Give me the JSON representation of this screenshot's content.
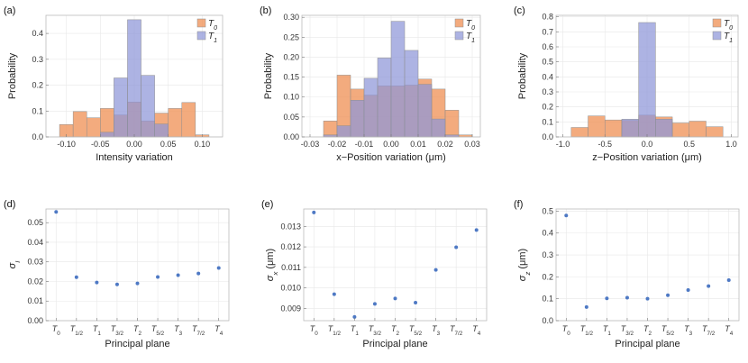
{
  "colors": {
    "T0": "#ee8a4c",
    "T1": "#8d96d8",
    "point": "#4e79c4",
    "frame": "#bbbbbb",
    "grid": "#e8e8e8"
  },
  "chart_data": [
    {
      "id": "a",
      "panel_label": "(a)",
      "type": "histogram",
      "xlabel": "Intensity variation",
      "ylabel": "Probability",
      "xlim": [
        -0.13,
        0.13
      ],
      "ylim": [
        0,
        0.47
      ],
      "xticks": [
        -0.1,
        -0.05,
        0.0,
        0.05,
        0.1
      ],
      "xtick_labels": [
        "-0.10",
        "-0.05",
        "0.00",
        "0.05",
        "0.10"
      ],
      "yticks": [
        0.0,
        0.1,
        0.2,
        0.3,
        0.4
      ],
      "ytick_labels": [
        "0.0",
        "0.1",
        "0.2",
        "0.3",
        "0.4"
      ],
      "legend": {
        "position": "top-right",
        "entries": [
          {
            "key": "T0",
            "label": "T",
            "sub": "0"
          },
          {
            "key": "T1",
            "label": "T",
            "sub": "1"
          }
        ]
      },
      "series": [
        {
          "key": "T0",
          "bins": [
            [
              -0.11,
              -0.09,
              0.048
            ],
            [
              -0.09,
              -0.07,
              0.098
            ],
            [
              -0.07,
              -0.05,
              0.074
            ],
            [
              -0.05,
              -0.03,
              0.11
            ],
            [
              -0.03,
              -0.01,
              0.085
            ],
            [
              -0.01,
              0.01,
              0.135
            ],
            [
              0.01,
              0.03,
              0.062
            ],
            [
              0.03,
              0.05,
              0.092
            ],
            [
              0.05,
              0.07,
              0.11
            ],
            [
              0.07,
              0.09,
              0.133
            ],
            [
              0.09,
              0.11,
              0.008
            ]
          ]
        },
        {
          "key": "T1",
          "bins": [
            [
              -0.05,
              -0.03,
              0.018
            ],
            [
              -0.03,
              -0.01,
              0.228
            ],
            [
              -0.01,
              0.01,
              0.453
            ],
            [
              0.01,
              0.03,
              0.238
            ],
            [
              0.03,
              0.05,
              0.05
            ]
          ]
        }
      ]
    },
    {
      "id": "b",
      "panel_label": "(b)",
      "type": "histogram",
      "xlabel": "x−Position variation (μm)",
      "ylabel": "Probability",
      "xlim": [
        -0.033,
        0.033
      ],
      "ylim": [
        0,
        0.305
      ],
      "xticks": [
        -0.03,
        -0.02,
        -0.01,
        0.0,
        0.01,
        0.02,
        0.03
      ],
      "xtick_labels": [
        "-0.03",
        "-0.02",
        "-0.01",
        "0.00",
        "0.01",
        "0.02",
        "0.03"
      ],
      "yticks": [
        0.0,
        0.05,
        0.1,
        0.15,
        0.2,
        0.25,
        0.3
      ],
      "ytick_labels": [
        "0.00",
        "0.05",
        "0.10",
        "0.15",
        "0.20",
        "0.25",
        "0.30"
      ],
      "legend": {
        "position": "top-right",
        "entries": [
          {
            "key": "T0",
            "label": "T",
            "sub": "0"
          },
          {
            "key": "T1",
            "label": "T",
            "sub": "1"
          }
        ]
      },
      "series": [
        {
          "key": "T0",
          "bins": [
            [
              -0.025,
              -0.02,
              0.04
            ],
            [
              -0.02,
              -0.015,
              0.155
            ],
            [
              -0.015,
              -0.01,
              0.12
            ],
            [
              -0.01,
              -0.005,
              0.105
            ],
            [
              -0.005,
              0.0,
              0.128
            ],
            [
              0.0,
              0.005,
              0.128
            ],
            [
              0.005,
              0.01,
              0.13
            ],
            [
              0.01,
              0.015,
              0.145
            ],
            [
              0.015,
              0.02,
              0.12
            ],
            [
              0.02,
              0.025,
              0.067
            ],
            [
              0.025,
              0.03,
              0.005
            ]
          ]
        },
        {
          "key": "T1",
          "bins": [
            [
              -0.025,
              -0.02,
              0.005
            ],
            [
              -0.02,
              -0.015,
              0.028
            ],
            [
              -0.015,
              -0.01,
              0.092
            ],
            [
              -0.01,
              -0.005,
              0.147
            ],
            [
              -0.005,
              0.0,
              0.198
            ],
            [
              0.0,
              0.005,
              0.29
            ],
            [
              0.005,
              0.01,
              0.217
            ],
            [
              0.01,
              0.015,
              0.132
            ],
            [
              0.015,
              0.02,
              0.045
            ],
            [
              0.02,
              0.025,
              0.005
            ]
          ]
        }
      ]
    },
    {
      "id": "c",
      "panel_label": "(c)",
      "type": "histogram",
      "xlabel": "z−Position variation (μm)",
      "ylabel": "Probability",
      "xlim": [
        -1.08,
        1.08
      ],
      "ylim": [
        0,
        0.81
      ],
      "xticks": [
        -1.0,
        -0.5,
        0.0,
        0.5,
        1.0
      ],
      "xtick_labels": [
        "-1.0",
        "-0.5",
        "0.0",
        "0.5",
        "1.0"
      ],
      "yticks": [
        0.0,
        0.1,
        0.2,
        0.3,
        0.4,
        0.5,
        0.6,
        0.7,
        0.8
      ],
      "ytick_labels": [
        "0.0",
        "0.1",
        "0.2",
        "0.3",
        "0.4",
        "0.5",
        "0.6",
        "0.7",
        "0.8"
      ],
      "legend": {
        "position": "top-right",
        "entries": [
          {
            "key": "T0",
            "label": "T",
            "sub": "0"
          },
          {
            "key": "T1",
            "label": "T",
            "sub": "1"
          }
        ]
      },
      "series": [
        {
          "key": "T0",
          "bins": [
            [
              -0.9,
              -0.7,
              0.063
            ],
            [
              -0.7,
              -0.5,
              0.14
            ],
            [
              -0.5,
              -0.3,
              0.113
            ],
            [
              -0.3,
              -0.1,
              0.11
            ],
            [
              -0.1,
              0.1,
              0.145
            ],
            [
              0.1,
              0.3,
              0.133
            ],
            [
              0.3,
              0.5,
              0.093
            ],
            [
              0.5,
              0.7,
              0.105
            ],
            [
              0.7,
              0.9,
              0.068
            ]
          ]
        },
        {
          "key": "T1",
          "bins": [
            [
              -0.3,
              -0.1,
              0.118
            ],
            [
              -0.1,
              0.1,
              0.762
            ],
            [
              0.1,
              0.3,
              0.118
            ]
          ]
        }
      ]
    },
    {
      "id": "d",
      "panel_label": "(d)",
      "type": "scatter",
      "xlabel": "Principal plane",
      "ylabel": "σ",
      "ylabel_sub": "I",
      "ylim": [
        0,
        0.057
      ],
      "yticks": [
        0.0,
        0.01,
        0.02,
        0.03,
        0.04,
        0.05
      ],
      "ytick_labels": [
        "0.00",
        "0.01",
        "0.02",
        "0.03",
        "0.04",
        "0.05"
      ],
      "categories": [
        "T0",
        "T1/2",
        "T1",
        "T3/2",
        "T2",
        "T5/2",
        "T3",
        "T7/2",
        "T4"
      ],
      "category_labels": [
        {
          "main": "T",
          "sub": "0"
        },
        {
          "main": "T",
          "sub": "1/2"
        },
        {
          "main": "T",
          "sub": "1"
        },
        {
          "main": "T",
          "sub": "3/2"
        },
        {
          "main": "T",
          "sub": "2"
        },
        {
          "main": "T",
          "sub": "5/2"
        },
        {
          "main": "T",
          "sub": "3"
        },
        {
          "main": "T",
          "sub": "7/2"
        },
        {
          "main": "T",
          "sub": "4"
        }
      ],
      "values": [
        0.0555,
        0.0222,
        0.0195,
        0.0185,
        0.019,
        0.0223,
        0.0232,
        0.0241,
        0.0269
      ]
    },
    {
      "id": "e",
      "panel_label": "(e)",
      "type": "scatter",
      "xlabel": "Principal plane",
      "ylabel": "σ",
      "ylabel_sub": "x",
      "ylabel_suffix": " (μm)",
      "ylim": [
        0.0084,
        0.01385
      ],
      "yticks": [
        0.009,
        0.01,
        0.011,
        0.012,
        0.013
      ],
      "ytick_labels": [
        "0.009",
        "0.010",
        "0.011",
        "0.012",
        "0.013"
      ],
      "categories": [
        "T0",
        "T1/2",
        "T1",
        "T3/2",
        "T2",
        "T5/2",
        "T3",
        "T7/2",
        "T4"
      ],
      "category_labels": [
        {
          "main": "T",
          "sub": "0"
        },
        {
          "main": "T",
          "sub": "1/2"
        },
        {
          "main": "T",
          "sub": "1"
        },
        {
          "main": "T",
          "sub": "3/2"
        },
        {
          "main": "T",
          "sub": "2"
        },
        {
          "main": "T",
          "sub": "5/2"
        },
        {
          "main": "T",
          "sub": "3"
        },
        {
          "main": "T",
          "sub": "7/2"
        },
        {
          "main": "T",
          "sub": "4"
        }
      ],
      "values": [
        0.01368,
        0.00969,
        0.00858,
        0.00922,
        0.00948,
        0.00928,
        0.01088,
        0.01198,
        0.01282
      ]
    },
    {
      "id": "f",
      "panel_label": "(f)",
      "type": "scatter",
      "xlabel": "Principal plane",
      "ylabel": "σ",
      "ylabel_sub": "z",
      "ylabel_suffix": " (μm)",
      "ylim": [
        0,
        0.51
      ],
      "yticks": [
        0.0,
        0.1,
        0.2,
        0.3,
        0.4,
        0.5
      ],
      "ytick_labels": [
        "0.0",
        "0.1",
        "0.2",
        "0.3",
        "0.4",
        "0.5"
      ],
      "categories": [
        "T0",
        "T1/2",
        "T1",
        "T3/2",
        "T2",
        "T5/2",
        "T3",
        "T7/2",
        "T4"
      ],
      "category_labels": [
        {
          "main": "T",
          "sub": "0"
        },
        {
          "main": "T",
          "sub": "1/2"
        },
        {
          "main": "T",
          "sub": "1"
        },
        {
          "main": "T",
          "sub": "3/2"
        },
        {
          "main": "T",
          "sub": "2"
        },
        {
          "main": "T",
          "sub": "5/2"
        },
        {
          "main": "T",
          "sub": "3"
        },
        {
          "main": "T",
          "sub": "7/2"
        },
        {
          "main": "T",
          "sub": "4"
        }
      ],
      "values": [
        0.48,
        0.062,
        0.102,
        0.105,
        0.1,
        0.116,
        0.14,
        0.158,
        0.185
      ]
    }
  ]
}
